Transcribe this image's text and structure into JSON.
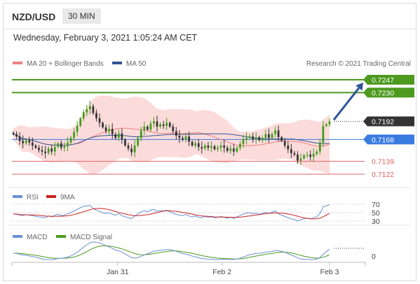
{
  "header": {
    "symbol": "NZD/USD",
    "timeframe": "30 MIN",
    "datetime": "Wednesday, February 3, 2021 1:05:24 AM CET"
  },
  "legend": {
    "ma20": "MA 20 + Bollinger Bands",
    "ma50": "MA 50",
    "credit": "Research © 2021 Trading Central",
    "rsi": "RSI",
    "rsi_ma": "9MA",
    "macd": "MACD",
    "macd_signal": "MACD Signal"
  },
  "colors": {
    "ma20": "#f08080",
    "ma50": "#2f5597",
    "resistance": "#4d9a1e",
    "support": "#e06060",
    "pivot": "#3a7be0",
    "last": "#333333",
    "band_fill": "#fbd5d5",
    "bull": "#3f9a1a",
    "bear": "#333333",
    "macd_signal": "#4d9a1e",
    "rsi_line": "#6b8fd6",
    "rsi_ma_line": "#cc2222"
  },
  "chart_data": {
    "type": "candlestick",
    "ylim": [
      0.711,
      0.726
    ],
    "x_ticks": [
      "Jan 31",
      "Feb 2",
      "Feb 3"
    ],
    "levels": [
      {
        "label": "0.7247",
        "value": 0.7247,
        "kind": "resistance"
      },
      {
        "label": "0.7230",
        "value": 0.723,
        "kind": "resistance"
      },
      {
        "label": "0.7192",
        "value": 0.7192,
        "kind": "last"
      },
      {
        "label": "0.7168",
        "value": 0.7168,
        "kind": "pivot"
      },
      {
        "label": "0.7139",
        "value": 0.7139,
        "kind": "support"
      },
      {
        "label": "0.7122",
        "value": 0.7122,
        "kind": "support"
      }
    ],
    "close": [
      0.7175,
      0.7172,
      0.7166,
      0.7163,
      0.7167,
      0.7164,
      0.716,
      0.7157,
      0.7154,
      0.7152,
      0.715,
      0.7156,
      0.7152,
      0.7158,
      0.7163,
      0.7157,
      0.7159,
      0.7164,
      0.717,
      0.7178,
      0.7186,
      0.7196,
      0.7204,
      0.7208,
      0.7212,
      0.7203,
      0.7196,
      0.719,
      0.7184,
      0.7179,
      0.7182,
      0.7175,
      0.717,
      0.7176,
      0.7168,
      0.716,
      0.7156,
      0.7151,
      0.716,
      0.717,
      0.718,
      0.7185,
      0.7181,
      0.7189,
      0.7192,
      0.7185,
      0.7188,
      0.7186,
      0.719,
      0.7185,
      0.7179,
      0.7173,
      0.717,
      0.7168,
      0.7172,
      0.7165,
      0.716,
      0.7163,
      0.7158,
      0.7156,
      0.716,
      0.7157,
      0.7159,
      0.7155,
      0.7157,
      0.716,
      0.7157,
      0.7153,
      0.7156,
      0.7152,
      0.7157,
      0.7162,
      0.7168,
      0.717,
      0.7172,
      0.7168,
      0.7171,
      0.7167,
      0.717,
      0.7175,
      0.717,
      0.7175,
      0.718,
      0.7171,
      0.7166,
      0.716,
      0.7155,
      0.715,
      0.7148,
      0.714,
      0.7143,
      0.7147,
      0.7148,
      0.7145,
      0.7149,
      0.7152,
      0.7164,
      0.7186,
      0.7188,
      0.7192
    ],
    "rsi": [
      47,
      46,
      44,
      43,
      45,
      44,
      43,
      41,
      40,
      39,
      38,
      42,
      40,
      44,
      46,
      43,
      44,
      47,
      50,
      54,
      58,
      62,
      65,
      66,
      67,
      60,
      56,
      53,
      50,
      48,
      50,
      46,
      44,
      48,
      43,
      40,
      38,
      36,
      42,
      47,
      52,
      55,
      52,
      56,
      58,
      53,
      55,
      54,
      56,
      52,
      49,
      46,
      44,
      43,
      46,
      42,
      40,
      42,
      39,
      38,
      41,
      39,
      40,
      38,
      39,
      41,
      39,
      37,
      39,
      36,
      40,
      43,
      47,
      49,
      50,
      47,
      49,
      46,
      48,
      51,
      48,
      51,
      54,
      47,
      44,
      41,
      38,
      35,
      34,
      30,
      33,
      36,
      37,
      35,
      38,
      40,
      48,
      64,
      66,
      69
    ],
    "rsi_levels": [
      70,
      50,
      30
    ],
    "macd_levels": [
      0
    ]
  }
}
